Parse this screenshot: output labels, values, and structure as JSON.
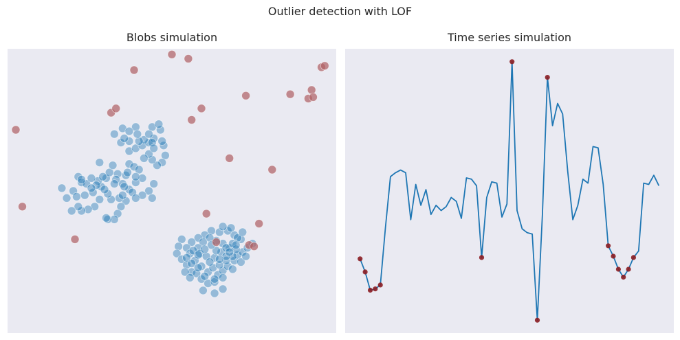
{
  "figure": {
    "title": "Outlier detection with LOF"
  },
  "chart_data": [
    {
      "type": "scatter",
      "title": "Blobs simulation",
      "xlabel": "",
      "ylabel": "",
      "axes_visible": false,
      "grid": false,
      "xlim": [
        -1,
        1
      ],
      "ylim": [
        -1,
        1
      ],
      "colors": {
        "inlier": "#1f77b4",
        "outlier": "#b06266",
        "background": "#eaeaf2"
      },
      "series": [
        {
          "role": "inliers",
          "points": [
            [
              -0.57,
              0.1
            ],
            [
              -0.55,
              0.06
            ],
            [
              -0.52,
              0.05
            ],
            [
              -0.6,
              0.0
            ],
            [
              -0.58,
              -0.04
            ],
            [
              -0.48,
              -0.01
            ],
            [
              -0.43,
              0.03
            ],
            [
              -0.4,
              0.09
            ],
            [
              -0.38,
              0.13
            ],
            [
              -0.36,
              0.18
            ],
            [
              -0.33,
              0.12
            ],
            [
              -0.3,
              0.05
            ],
            [
              -0.28,
              0.11
            ],
            [
              -0.26,
              0.19
            ],
            [
              -0.23,
              0.17
            ],
            [
              -0.2,
              0.15
            ],
            [
              -0.18,
              0.09
            ],
            [
              -0.14,
              0.0
            ],
            [
              -0.11,
              0.05
            ],
            [
              -0.18,
              -0.03
            ],
            [
              -0.22,
              0.06
            ],
            [
              -0.26,
              0.01
            ],
            [
              -0.28,
              -0.07
            ],
            [
              -0.31,
              -0.11
            ],
            [
              -0.33,
              -0.16
            ],
            [
              -0.35,
              -0.2
            ],
            [
              -0.37,
              -0.06
            ],
            [
              -0.39,
              -0.02
            ],
            [
              -0.41,
              0.01
            ],
            [
              -0.44,
              -0.06
            ],
            [
              -0.47,
              -0.11
            ],
            [
              -0.51,
              -0.13
            ],
            [
              -0.55,
              -0.14
            ],
            [
              -0.57,
              -0.11
            ],
            [
              -0.61,
              -0.14
            ],
            [
              -0.64,
              -0.05
            ],
            [
              -0.67,
              0.02
            ],
            [
              -0.53,
              -0.03
            ],
            [
              -0.45,
              0.07
            ],
            [
              -0.34,
              0.08
            ],
            [
              -0.22,
              0.1
            ],
            [
              -0.24,
              -0.01
            ],
            [
              -0.29,
              0.03
            ],
            [
              -0.27,
              0.13
            ],
            [
              -0.35,
              0.05
            ],
            [
              -0.42,
              0.1
            ],
            [
              -0.46,
              0.04
            ],
            [
              -0.49,
              0.09
            ],
            [
              -0.32,
              -0.05
            ],
            [
              -0.39,
              -0.2
            ],
            [
              -0.4,
              -0.19
            ],
            [
              -0.3,
              -0.03
            ],
            [
              -0.22,
              -0.05
            ],
            [
              -0.12,
              -0.05
            ],
            [
              -0.55,
              0.08
            ],
            [
              -0.49,
              0.02
            ],
            [
              -0.44,
              0.2
            ],
            [
              -0.26,
              0.28
            ],
            [
              -0.22,
              0.3
            ],
            [
              -0.18,
              0.32
            ],
            [
              -0.14,
              0.34
            ],
            [
              -0.11,
              0.37
            ],
            [
              -0.17,
              0.36
            ],
            [
              -0.2,
              0.35
            ],
            [
              -0.26,
              0.35
            ],
            [
              -0.31,
              0.34
            ],
            [
              -0.29,
              0.37
            ],
            [
              -0.35,
              0.4
            ],
            [
              -0.3,
              0.44
            ],
            [
              -0.22,
              0.45
            ],
            [
              -0.12,
              0.45
            ],
            [
              -0.07,
              0.43
            ],
            [
              -0.05,
              0.32
            ],
            [
              -0.04,
              0.25
            ],
            [
              -0.06,
              0.2
            ],
            [
              -0.09,
              0.18
            ],
            [
              -0.12,
              0.22
            ],
            [
              -0.14,
              0.26
            ],
            [
              -0.12,
              0.34
            ],
            [
              -0.11,
              0.3
            ],
            [
              -0.17,
              0.23
            ],
            [
              -0.21,
              0.4
            ],
            [
              -0.26,
              0.42
            ],
            [
              -0.08,
              0.47
            ],
            [
              -0.06,
              0.35
            ],
            [
              -0.14,
              0.4
            ],
            [
              0.06,
              -0.34
            ],
            [
              0.04,
              -0.39
            ],
            [
              0.03,
              -0.44
            ],
            [
              0.06,
              -0.48
            ],
            [
              0.09,
              -0.52
            ],
            [
              0.12,
              -0.57
            ],
            [
              0.15,
              -0.58
            ],
            [
              0.18,
              -0.62
            ],
            [
              0.22,
              -0.65
            ],
            [
              0.26,
              -0.64
            ],
            [
              0.28,
              -0.59
            ],
            [
              0.31,
              -0.56
            ],
            [
              0.34,
              -0.53
            ],
            [
              0.38,
              -0.49
            ],
            [
              0.4,
              -0.45
            ],
            [
              0.43,
              -0.43
            ],
            [
              0.46,
              -0.4
            ],
            [
              0.49,
              -0.37
            ],
            [
              0.42,
              -0.34
            ],
            [
              0.38,
              -0.31
            ],
            [
              0.34,
              -0.28
            ],
            [
              0.29,
              -0.29
            ],
            [
              0.24,
              -0.28
            ],
            [
              0.2,
              -0.31
            ],
            [
              0.16,
              -0.33
            ],
            [
              0.12,
              -0.36
            ],
            [
              0.09,
              -0.4
            ],
            [
              0.11,
              -0.44
            ],
            [
              0.14,
              -0.49
            ],
            [
              0.18,
              -0.53
            ],
            [
              0.22,
              -0.57
            ],
            [
              0.25,
              -0.54
            ],
            [
              0.29,
              -0.52
            ],
            [
              0.33,
              -0.49
            ],
            [
              0.37,
              -0.46
            ],
            [
              0.35,
              -0.4
            ],
            [
              0.31,
              -0.37
            ],
            [
              0.27,
              -0.35
            ],
            [
              0.23,
              -0.33
            ],
            [
              0.19,
              -0.36
            ],
            [
              0.16,
              -0.4
            ],
            [
              0.13,
              -0.42
            ],
            [
              0.17,
              -0.44
            ],
            [
              0.21,
              -0.46
            ],
            [
              0.26,
              -0.47
            ],
            [
              0.3,
              -0.43
            ],
            [
              0.33,
              -0.4
            ],
            [
              0.37,
              -0.37
            ],
            [
              0.4,
              -0.33
            ],
            [
              0.43,
              -0.29
            ],
            [
              0.36,
              -0.26
            ],
            [
              0.31,
              -0.25
            ],
            [
              0.09,
              -0.47
            ],
            [
              0.12,
              -0.51
            ],
            [
              0.16,
              -0.54
            ],
            [
              0.2,
              -0.6
            ],
            [
              0.26,
              -0.62
            ],
            [
              0.31,
              -0.61
            ],
            [
              0.37,
              -0.55
            ],
            [
              0.42,
              -0.5
            ],
            [
              0.45,
              -0.46
            ],
            [
              0.39,
              -0.41
            ],
            [
              0.33,
              -0.46
            ],
            [
              0.27,
              -0.42
            ],
            [
              0.24,
              -0.38
            ],
            [
              0.2,
              -0.41
            ],
            [
              0.16,
              -0.45
            ],
            [
              0.23,
              -0.5
            ],
            [
              0.29,
              -0.48
            ],
            [
              0.35,
              -0.43
            ],
            [
              0.39,
              -0.38
            ],
            [
              0.08,
              -0.57
            ],
            [
              0.11,
              -0.61
            ],
            [
              0.31,
              -0.69
            ],
            [
              0.26,
              -0.72
            ],
            [
              0.19,
              -0.7
            ]
          ]
        },
        {
          "role": "outliers",
          "points": [
            [
              -0.95,
              0.43
            ],
            [
              -0.91,
              -0.11
            ],
            [
              -0.59,
              -0.34
            ],
            [
              -0.37,
              0.55
            ],
            [
              -0.34,
              0.58
            ],
            [
              -0.23,
              0.85
            ],
            [
              0.0,
              0.96
            ],
            [
              0.1,
              0.93
            ],
            [
              0.12,
              0.5
            ],
            [
              0.18,
              0.58
            ],
            [
              0.21,
              -0.16
            ],
            [
              0.27,
              -0.36
            ],
            [
              0.35,
              0.23
            ],
            [
              0.45,
              0.67
            ],
            [
              0.47,
              -0.38
            ],
            [
              0.5,
              -0.39
            ],
            [
              0.53,
              -0.23
            ],
            [
              0.61,
              0.15
            ],
            [
              0.72,
              0.68
            ],
            [
              0.83,
              0.65
            ],
            [
              0.85,
              0.71
            ],
            [
              0.86,
              0.66
            ],
            [
              0.91,
              0.87
            ],
            [
              0.93,
              0.88
            ]
          ]
        }
      ]
    },
    {
      "type": "line",
      "title": "Time series simulation",
      "xlabel": "",
      "ylabel": "",
      "axes_visible": false,
      "grid": false,
      "colors": {
        "line": "#1f77b4",
        "outlier": "#8b1d22",
        "background": "#eaeaf2"
      },
      "x": [
        0,
        1,
        2,
        3,
        4,
        5,
        6,
        7,
        8,
        9,
        10,
        11,
        12,
        13,
        14,
        15,
        16,
        17,
        18,
        19,
        20,
        21,
        22,
        23,
        24,
        25,
        26,
        27,
        28,
        29,
        30,
        31,
        32,
        33,
        34,
        35,
        36,
        37,
        38,
        39,
        40,
        41,
        42,
        43,
        44,
        45,
        46,
        47,
        48,
        49,
        50,
        51,
        52,
        53,
        54,
        55,
        56,
        57,
        58,
        59
      ],
      "y": [
        -0.55,
        -0.65,
        -0.79,
        -0.78,
        -0.75,
        -0.31,
        0.08,
        0.11,
        0.13,
        0.11,
        -0.25,
        0.02,
        -0.14,
        -0.02,
        -0.21,
        -0.14,
        -0.18,
        -0.15,
        -0.08,
        -0.11,
        -0.24,
        0.07,
        0.06,
        0.01,
        -0.54,
        -0.08,
        0.04,
        0.03,
        -0.23,
        -0.13,
        0.96,
        -0.18,
        -0.32,
        -0.35,
        -0.36,
        -1.02,
        -0.21,
        0.84,
        0.47,
        0.64,
        0.56,
        0.12,
        -0.25,
        -0.14,
        0.06,
        0.03,
        0.31,
        0.3,
        0.02,
        -0.45,
        -0.53,
        -0.63,
        -0.69,
        -0.63,
        -0.54,
        -0.49,
        0.03,
        0.02,
        0.09,
        0.01
      ],
      "outlier_indices": [
        0,
        1,
        2,
        3,
        4,
        24,
        30,
        35,
        37,
        49,
        50,
        51,
        52,
        53,
        54
      ]
    }
  ]
}
